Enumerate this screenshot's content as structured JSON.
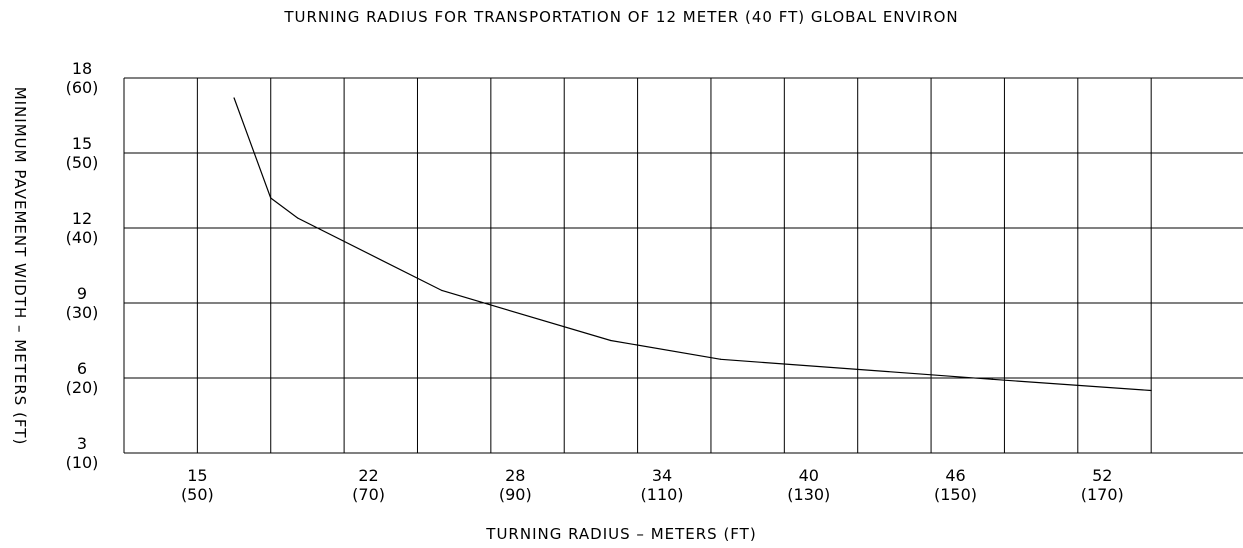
{
  "chart_data": {
    "type": "line",
    "title": "TURNING RADIUS FOR TRANSPORTATION OF 12 METER (40 FT) GLOBAL ENVIRON",
    "xlabel": "TURNING RADIUS – METERS (FT)",
    "ylabel": "MINIMUM PAVEMENT WIDTH – METERS (FT)",
    "xlim": [
      12,
      58
    ],
    "ylim": [
      3,
      18
    ],
    "grid": true,
    "x_ticks": [
      {
        "value": 15,
        "metric": "15",
        "imperial": "(50)"
      },
      {
        "value": 22,
        "metric": "22",
        "imperial": "(70)"
      },
      {
        "value": 28,
        "metric": "28",
        "imperial": "(90)"
      },
      {
        "value": 34,
        "metric": "34",
        "imperial": "(110)"
      },
      {
        "value": 40,
        "metric": "40",
        "imperial": "(130)"
      },
      {
        "value": 46,
        "metric": "46",
        "imperial": "(150)"
      },
      {
        "value": 52,
        "metric": "52",
        "imperial": "(170)"
      }
    ],
    "y_ticks": [
      {
        "value": 18,
        "metric": "18",
        "imperial": "(60)"
      },
      {
        "value": 15,
        "metric": "15",
        "imperial": "(50)"
      },
      {
        "value": 12,
        "metric": "12",
        "imperial": "(40)"
      },
      {
        "value": 9,
        "metric": "9",
        "imperial": "(30)"
      },
      {
        "value": 6,
        "metric": "6",
        "imperial": "(20)"
      },
      {
        "value": 3,
        "metric": "3",
        "imperial": "(10)"
      }
    ],
    "series": [
      {
        "x": [
          16.5,
          18.0,
          19.1,
          25.0,
          31.9,
          36.4,
          47.5,
          54.0
        ],
        "y": [
          17.2,
          13.2,
          12.4,
          9.5,
          7.5,
          6.75,
          5.95,
          5.5
        ]
      }
    ]
  }
}
